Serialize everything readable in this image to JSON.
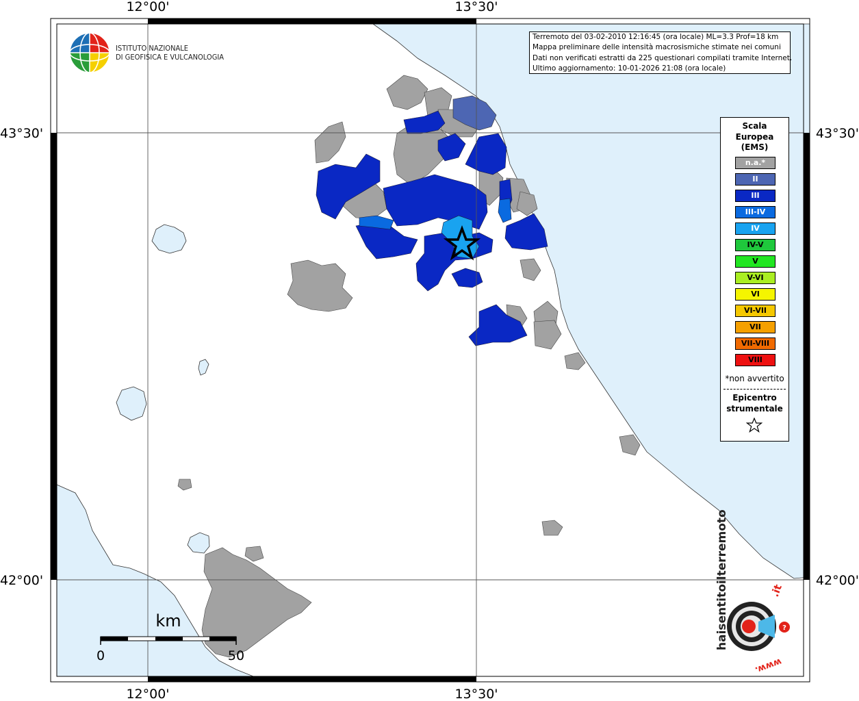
{
  "map": {
    "coords": {
      "lon_left": "12°00'",
      "lon_right": "13°30'",
      "lat_top": "43°30'",
      "lat_bottom": "42°00'"
    },
    "colors": {
      "sea": "#dff0fb",
      "land": "#ffffff",
      "na": "#a2a2a2",
      "II": "#4d66b3",
      "III": "#0a28c4",
      "III_IV": "#0a6ae0",
      "IV": "#19a3f0"
    }
  },
  "logo": {
    "line1": "ISTITUTO NAZIONALE",
    "line2": "DI GEOFISICA E VULCANOLOGIA"
  },
  "info": {
    "line1": "Terremoto del 03-02-2010 12:16:45 (ora locale) ML=3.3 Prof=18 km",
    "line2": "Mappa preliminare delle intensità macrosismiche stimate nei comuni",
    "line3": "Dati non verificati estratti da 225 questionari compilati tramite Internet.",
    "line4": "Ultimo aggiornamento: 10-01-2026 21:08 (ora locale)"
  },
  "legend": {
    "title1": "Scala",
    "title2": "Europea",
    "title3": "(EMS)",
    "items": [
      {
        "label": "n.a.*",
        "color": "#a2a2a2",
        "text": "#ffffff"
      },
      {
        "label": "II",
        "color": "#4d66b3",
        "text": "#ffffff"
      },
      {
        "label": "III",
        "color": "#0a28c4",
        "text": "#ffffff"
      },
      {
        "label": "III-IV",
        "color": "#0a6ae0",
        "text": "#ffffff"
      },
      {
        "label": "IV",
        "color": "#19a3f0",
        "text": "#ffffff"
      },
      {
        "label": "IV-V",
        "color": "#1fc83c",
        "text": "#000000"
      },
      {
        "label": "V",
        "color": "#22e622",
        "text": "#000000"
      },
      {
        "label": "V-VI",
        "color": "#aaee22",
        "text": "#000000"
      },
      {
        "label": "VI",
        "color": "#f5f500",
        "text": "#000000"
      },
      {
        "label": "VI-VII",
        "color": "#f5c800",
        "text": "#000000"
      },
      {
        "label": "VII",
        "color": "#f5a000",
        "text": "#000000"
      },
      {
        "label": "VII-VIII",
        "color": "#f06a00",
        "text": "#000000"
      },
      {
        "label": "VIII",
        "color": "#ee1111",
        "text": "#000000"
      }
    ],
    "na_note": "*non avvertito",
    "epi1": "Epicentro",
    "epi2": "strumentale"
  },
  "scale": {
    "unit": "km",
    "min": "0",
    "max": "50"
  },
  "badge": {
    "brand_main": "haisentitoilterremoto",
    "brand_tld": ".it",
    "prefix": "www."
  }
}
